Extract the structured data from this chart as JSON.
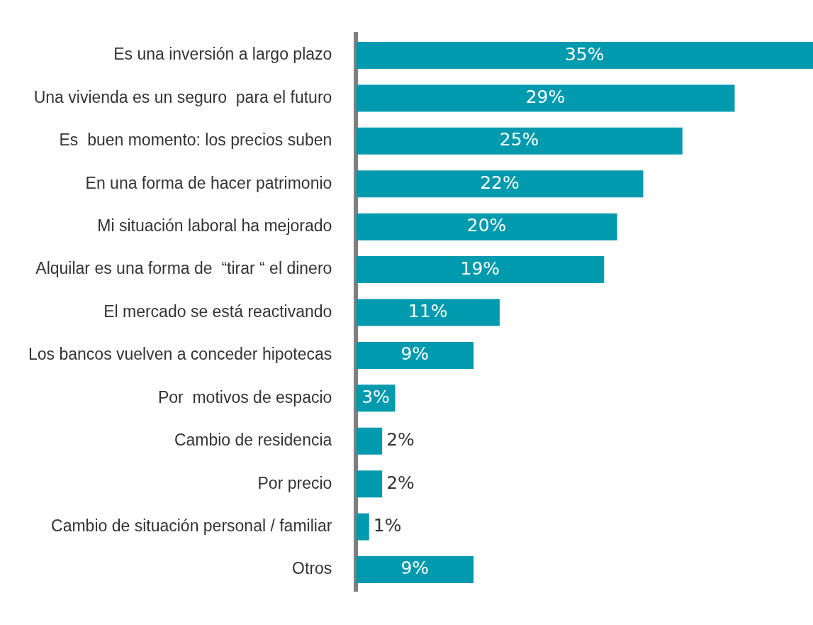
{
  "chart_data": {
    "type": "bar",
    "orientation": "horizontal",
    "categories": [
      "Es una inversión a largo plazo",
      "Una vivienda es un seguro  para el futuro",
      "Es  buen momento: los precios suben",
      "En una forma de hacer patrimonio",
      "Mi situación laboral ha mejorado",
      "Alquilar es una forma de  “tirar “ el dinero",
      "El mercado se está reactivando",
      "Los bancos vuelven a conceder hipotecas",
      "Por  motivos de espacio",
      "Cambio de residencia",
      "Por precio",
      "Cambio de situación personal / familiar",
      "Otros"
    ],
    "values": [
      35,
      29,
      25,
      22,
      20,
      19,
      11,
      9,
      3,
      2,
      2,
      1,
      9
    ],
    "value_labels": [
      "35%",
      "29%",
      "25%",
      "22%",
      "20%",
      "19%",
      "11%",
      "9%",
      "3%",
      "2%",
      "2%",
      "1%",
      "9%"
    ],
    "color": "#009aae",
    "grid": false,
    "legend": false,
    "tick_labels": "y"
  }
}
